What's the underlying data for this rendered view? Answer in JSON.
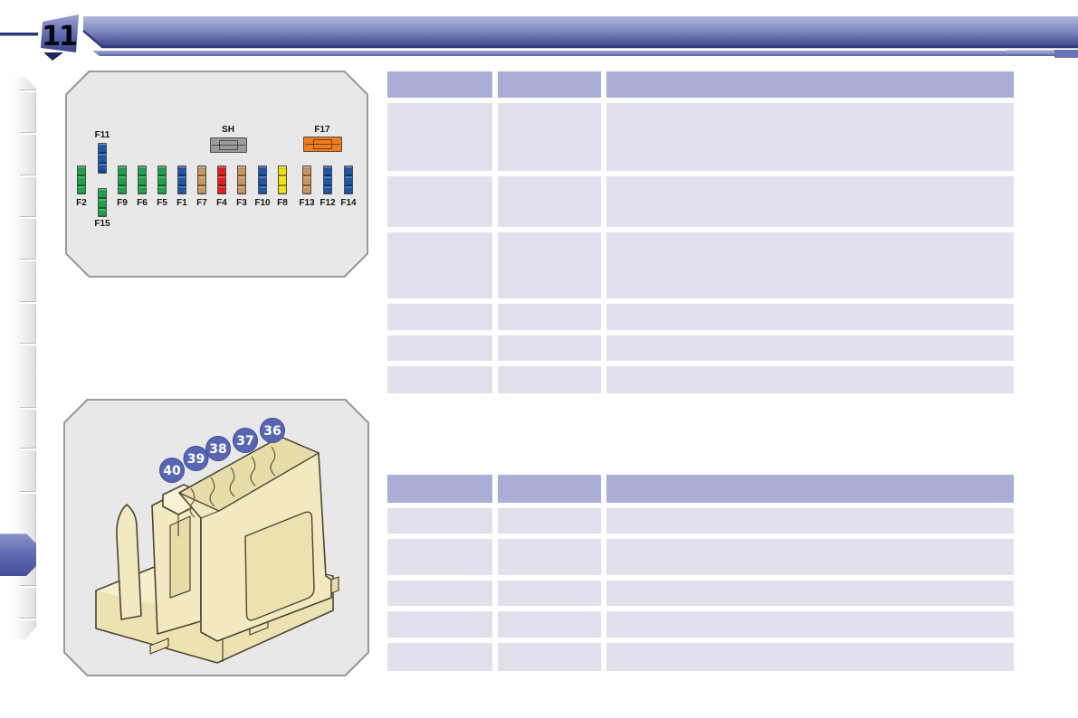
{
  "page": {
    "number": "11"
  },
  "header": {
    "band_color_top": "#b2b7db",
    "band_color_bottom": "#454f93",
    "edge_color": "#2e3877"
  },
  "sidebar": {
    "active_tab_color": "#5a66ae"
  },
  "figure_fusebox": {
    "top_fuses": [
      {
        "id": "SH",
        "color": "gray"
      },
      {
        "id": "F17",
        "color": "orange"
      }
    ],
    "raised_fuse": {
      "id": "F11",
      "color": "blue"
    },
    "lowered_fuse": {
      "id": "F15",
      "color": "green"
    },
    "row_fuses": [
      {
        "id": "F2",
        "color": "green"
      },
      {
        "id": "F9",
        "color": "green"
      },
      {
        "id": "F6",
        "color": "green"
      },
      {
        "id": "F5",
        "color": "green"
      },
      {
        "id": "F1",
        "color": "blue"
      },
      {
        "id": "F7",
        "color": "tan"
      },
      {
        "id": "F4",
        "color": "red"
      },
      {
        "id": "F3",
        "color": "tan"
      },
      {
        "id": "F10",
        "color": "blue"
      },
      {
        "id": "F8",
        "color": "yellow"
      },
      {
        "id": "F13",
        "color": "tan"
      },
      {
        "id": "F12",
        "color": "blue"
      },
      {
        "id": "F14",
        "color": "blue"
      }
    ]
  },
  "fuse_colors": {
    "green": "#1fa24a",
    "blue": "#1f57a8",
    "tan": "#c7965f",
    "red": "#e02020",
    "yellow": "#f0e20a",
    "gray": "#9b9b9b",
    "orange": "#f07d1d"
  },
  "figure_relaybox": {
    "callout_color": "#5865b3",
    "callouts": [
      "40",
      "39",
      "38",
      "37",
      "36"
    ]
  },
  "tables": {
    "header_color": "#aaaed7",
    "row_color": "#e3e0ed",
    "upper": {
      "columns": [
        "",
        "",
        ""
      ],
      "rows": [
        [
          "",
          "",
          ""
        ],
        [
          "",
          "",
          ""
        ],
        [
          "",
          "",
          ""
        ],
        [
          "",
          "",
          ""
        ],
        [
          "",
          "",
          ""
        ],
        [
          "",
          "",
          ""
        ]
      ]
    },
    "lower": {
      "columns": [
        "",
        "",
        ""
      ],
      "rows": [
        [
          "",
          "",
          ""
        ],
        [
          "",
          "",
          ""
        ],
        [
          "",
          "",
          ""
        ],
        [
          "",
          "",
          ""
        ],
        [
          "",
          "",
          ""
        ]
      ]
    }
  }
}
